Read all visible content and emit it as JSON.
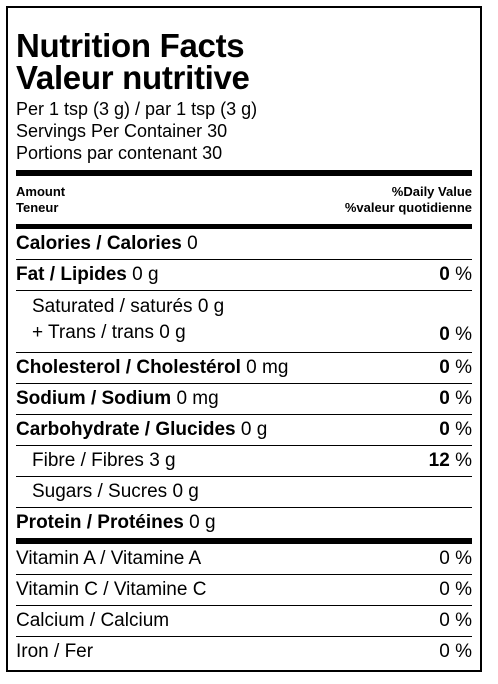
{
  "title_en": "Nutrition Facts",
  "title_fr": "Valeur nutritive",
  "serving": "Per 1 tsp (3 g) / par 1 tsp (3 g)",
  "servings_en": "Servings Per Container 30",
  "servings_fr": "Portions par contenant 30",
  "header": {
    "amount_en": "Amount",
    "amount_fr": "Teneur",
    "dv_en": "%Daily Value",
    "dv_fr": "%valeur quotidienne"
  },
  "calories": {
    "label": "Calories / Calories",
    "value": "0"
  },
  "fat": {
    "label": "Fat / Lipides",
    "value": "0 g",
    "pct": "0",
    "unit": "%"
  },
  "saturated": {
    "label": "Saturated / saturés 0 g"
  },
  "trans": {
    "label": "+ Trans / trans 0 g",
    "pct": "0",
    "unit": "%"
  },
  "cholesterol": {
    "label": "Cholesterol / Cholestérol",
    "value": "0 mg",
    "pct": "0",
    "unit": "%"
  },
  "sodium": {
    "label": "Sodium / Sodium",
    "value": "0 mg",
    "pct": "0",
    "unit": "%"
  },
  "carbohydrate": {
    "label": "Carbohydrate / Glucides",
    "value": "0 g",
    "pct": "0",
    "unit": "%"
  },
  "fibre": {
    "label": "Fibre / Fibres 3 g",
    "pct": "12",
    "unit": "%"
  },
  "sugars": {
    "label": "Sugars / Sucres 0 g"
  },
  "protein": {
    "label": "Protein / Protéines",
    "value": "0 g"
  },
  "vitamins": [
    {
      "label": "Vitamin A / Vitamine A",
      "pct": "0 %"
    },
    {
      "label": "Vitamin C / Vitamine C",
      "pct": "0 %"
    },
    {
      "label": "Calcium / Calcium",
      "pct": "0 %"
    },
    {
      "label": "Iron / Fer",
      "pct": "0 %"
    }
  ]
}
